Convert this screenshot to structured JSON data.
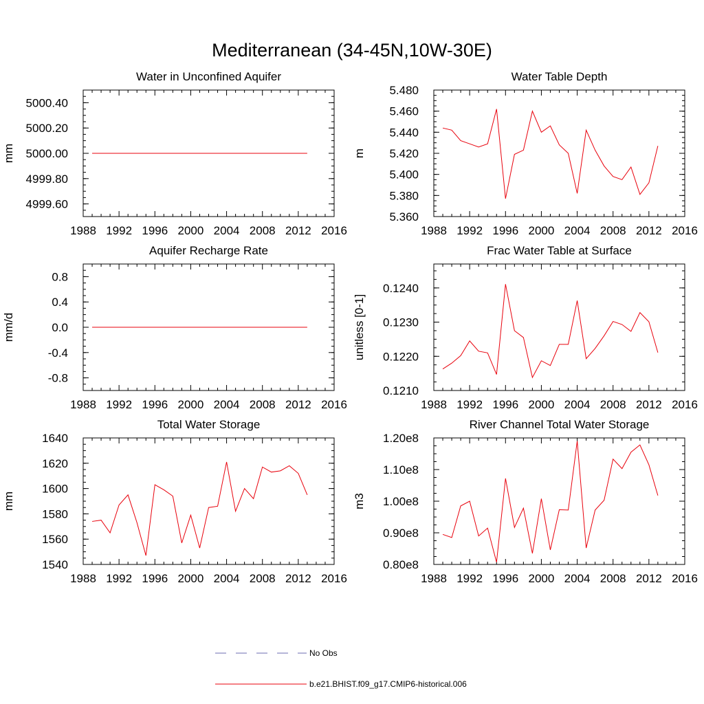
{
  "figure": {
    "title": "Mediterranean (34-45N,10W-30E)"
  },
  "legend": {
    "obs_label": "No Obs",
    "model_label": "b.e21.BHIST.f09_g17.CMIP6-historical.006",
    "obs_color": "#6b6bb0",
    "model_color": "#e8000b"
  },
  "chart_data": [
    {
      "type": "line",
      "title": "Water in Unconfined Aquifer",
      "ylabel": "mm",
      "xlim": [
        1988,
        2016
      ],
      "ylim": [
        4999.5,
        5000.5
      ],
      "xticks": [
        1988,
        1992,
        1996,
        2000,
        2004,
        2008,
        2012,
        2016
      ],
      "xtick_labels": [
        "1988",
        "1992",
        "1996",
        "2000",
        "2004",
        "2008",
        "2012",
        "2016"
      ],
      "yticks": [
        4999.6,
        4999.8,
        5000.0,
        5000.2,
        5000.4
      ],
      "ytick_labels": [
        "4999.60",
        "4999.80",
        "5000.00",
        "5000.20",
        "5000.40"
      ],
      "series": [
        {
          "name": "b.e21.BHIST.f09_g17.CMIP6-historical.006",
          "x": [
            1989,
            1990,
            1991,
            1992,
            1993,
            1994,
            1995,
            1996,
            1997,
            1998,
            1999,
            2000,
            2001,
            2002,
            2003,
            2004,
            2005,
            2006,
            2007,
            2008,
            2009,
            2010,
            2011,
            2012,
            2013
          ],
          "values": [
            5000,
            5000,
            5000,
            5000,
            5000,
            5000,
            5000,
            5000,
            5000,
            5000,
            5000,
            5000,
            5000,
            5000,
            5000,
            5000,
            5000,
            5000,
            5000,
            5000,
            5000,
            5000,
            5000,
            5000,
            5000
          ]
        }
      ]
    },
    {
      "type": "line",
      "title": "Water Table Depth",
      "ylabel": "m",
      "xlim": [
        1988,
        2016
      ],
      "ylim": [
        5.36,
        5.48
      ],
      "xticks": [
        1988,
        1992,
        1996,
        2000,
        2004,
        2008,
        2012,
        2016
      ],
      "xtick_labels": [
        "1988",
        "1992",
        "1996",
        "2000",
        "2004",
        "2008",
        "2012",
        "2016"
      ],
      "yticks": [
        5.36,
        5.38,
        5.4,
        5.42,
        5.44,
        5.46,
        5.48
      ],
      "ytick_labels": [
        "5.360",
        "5.380",
        "5.400",
        "5.420",
        "5.440",
        "5.460",
        "5.480"
      ],
      "series": [
        {
          "name": "b.e21.BHIST.f09_g17.CMIP6-historical.006",
          "x": [
            1989,
            1990,
            1991,
            1992,
            1993,
            1994,
            1995,
            1996,
            1997,
            1998,
            1999,
            2000,
            2001,
            2002,
            2003,
            2004,
            2005,
            2006,
            2007,
            2008,
            2009,
            2010,
            2011,
            2012,
            2013
          ],
          "values": [
            5.444,
            5.442,
            5.432,
            5.429,
            5.426,
            5.429,
            5.462,
            5.377,
            5.419,
            5.423,
            5.46,
            5.44,
            5.446,
            5.428,
            5.42,
            5.382,
            5.442,
            5.423,
            5.408,
            5.398,
            5.395,
            5.407,
            5.381,
            5.392,
            5.427
          ]
        }
      ]
    },
    {
      "type": "line",
      "title": "Aquifer Recharge Rate",
      "ylabel": "mm/d",
      "xlim": [
        1988,
        2016
      ],
      "ylim": [
        -1.0,
        1.0
      ],
      "xticks": [
        1988,
        1992,
        1996,
        2000,
        2004,
        2008,
        2012,
        2016
      ],
      "xtick_labels": [
        "1988",
        "1992",
        "1996",
        "2000",
        "2004",
        "2008",
        "2012",
        "2016"
      ],
      "yticks": [
        -0.8,
        -0.4,
        0.0,
        0.4,
        0.8
      ],
      "ytick_labels": [
        "-0.8",
        "-0.4",
        "0.0",
        "0.4",
        "0.8"
      ],
      "series": [
        {
          "name": "b.e21.BHIST.f09_g17.CMIP6-historical.006",
          "x": [
            1989,
            1990,
            1991,
            1992,
            1993,
            1994,
            1995,
            1996,
            1997,
            1998,
            1999,
            2000,
            2001,
            2002,
            2003,
            2004,
            2005,
            2006,
            2007,
            2008,
            2009,
            2010,
            2011,
            2012,
            2013
          ],
          "values": [
            0,
            0,
            0,
            0,
            0,
            0,
            0,
            0,
            0,
            0,
            0,
            0,
            0,
            0,
            0,
            0,
            0,
            0,
            0,
            0,
            0,
            0,
            0,
            0,
            0
          ]
        }
      ]
    },
    {
      "type": "line",
      "title": "Frac Water Table at Surface",
      "ylabel": "unitless [0-1]",
      "xlim": [
        1988,
        2016
      ],
      "ylim": [
        0.121,
        0.1247
      ],
      "xticks": [
        1988,
        1992,
        1996,
        2000,
        2004,
        2008,
        2012,
        2016
      ],
      "xtick_labels": [
        "1988",
        "1992",
        "1996",
        "2000",
        "2004",
        "2008",
        "2012",
        "2016"
      ],
      "yticks": [
        0.121,
        0.122,
        0.123,
        0.124
      ],
      "ytick_labels": [
        "0.1210",
        "0.1220",
        "0.1230",
        "0.1240"
      ],
      "series": [
        {
          "name": "b.e21.BHIST.f09_g17.CMIP6-historical.006",
          "x": [
            1989,
            1990,
            1991,
            1992,
            1993,
            1994,
            1995,
            1996,
            1997,
            1998,
            1999,
            2000,
            2001,
            2002,
            2003,
            2004,
            2005,
            2006,
            2007,
            2008,
            2009,
            2010,
            2011,
            2012,
            2013
          ],
          "values": [
            0.12163,
            0.1218,
            0.12202,
            0.12245,
            0.12215,
            0.1221,
            0.12147,
            0.12411,
            0.12275,
            0.12255,
            0.12138,
            0.12187,
            0.12173,
            0.12235,
            0.12235,
            0.12363,
            0.12193,
            0.12223,
            0.1226,
            0.12302,
            0.12293,
            0.12273,
            0.12328,
            0.12301,
            0.12211
          ]
        }
      ]
    },
    {
      "type": "line",
      "title": "Total Water Storage",
      "ylabel": "mm",
      "xlim": [
        1988,
        2016
      ],
      "ylim": [
        1540,
        1640
      ],
      "xticks": [
        1988,
        1992,
        1996,
        2000,
        2004,
        2008,
        2012,
        2016
      ],
      "xtick_labels": [
        "1988",
        "1992",
        "1996",
        "2000",
        "2004",
        "2008",
        "2012",
        "2016"
      ],
      "yticks": [
        1540,
        1560,
        1580,
        1600,
        1620,
        1640
      ],
      "ytick_labels": [
        "1540",
        "1560",
        "1580",
        "1600",
        "1620",
        "1640"
      ],
      "series": [
        {
          "name": "b.e21.BHIST.f09_g17.CMIP6-historical.006",
          "x": [
            1989,
            1990,
            1991,
            1992,
            1993,
            1994,
            1995,
            1996,
            1997,
            1998,
            1999,
            2000,
            2001,
            2002,
            2003,
            2004,
            2005,
            2006,
            2007,
            2008,
            2009,
            2010,
            2011,
            2012,
            2013
          ],
          "values": [
            1574,
            1575,
            1565,
            1587,
            1595,
            1573,
            1547,
            1603,
            1599,
            1594,
            1557,
            1579,
            1553,
            1585,
            1586,
            1621,
            1582,
            1600,
            1592,
            1617,
            1613,
            1614,
            1618,
            1612,
            1595
          ]
        }
      ]
    },
    {
      "type": "line",
      "title": "River Channel Total Water Storage",
      "ylabel": "m3",
      "xlim": [
        1988,
        2016
      ],
      "ylim": [
        80000000,
        120000000
      ],
      "xticks": [
        1988,
        1992,
        1996,
        2000,
        2004,
        2008,
        2012,
        2016
      ],
      "xtick_labels": [
        "1988",
        "1992",
        "1996",
        "2000",
        "2004",
        "2008",
        "2012",
        "2016"
      ],
      "yticks": [
        80000000,
        90000000,
        100000000,
        110000000,
        120000000
      ],
      "ytick_labels": [
        "0.80e8",
        "0.90e8",
        "1.00e8",
        "1.10e8",
        "1.20e8"
      ],
      "series": [
        {
          "name": "b.e21.BHIST.f09_g17.CMIP6-historical.006",
          "x": [
            1989,
            1990,
            1991,
            1992,
            1993,
            1994,
            1995,
            1996,
            1997,
            1998,
            1999,
            2000,
            2001,
            2002,
            2003,
            2004,
            2005,
            2006,
            2007,
            2008,
            2009,
            2010,
            2011,
            2012,
            2013
          ],
          "values": [
            89500000,
            88500000,
            98500000,
            100000000,
            89000000,
            91500000,
            80700000,
            107200000,
            91700000,
            97800000,
            83500000,
            100800000,
            84600000,
            97300000,
            97200000,
            119000000,
            85200000,
            97200000,
            100300000,
            113300000,
            110300000,
            115500000,
            117800000,
            111500000,
            101800000
          ]
        }
      ]
    }
  ]
}
